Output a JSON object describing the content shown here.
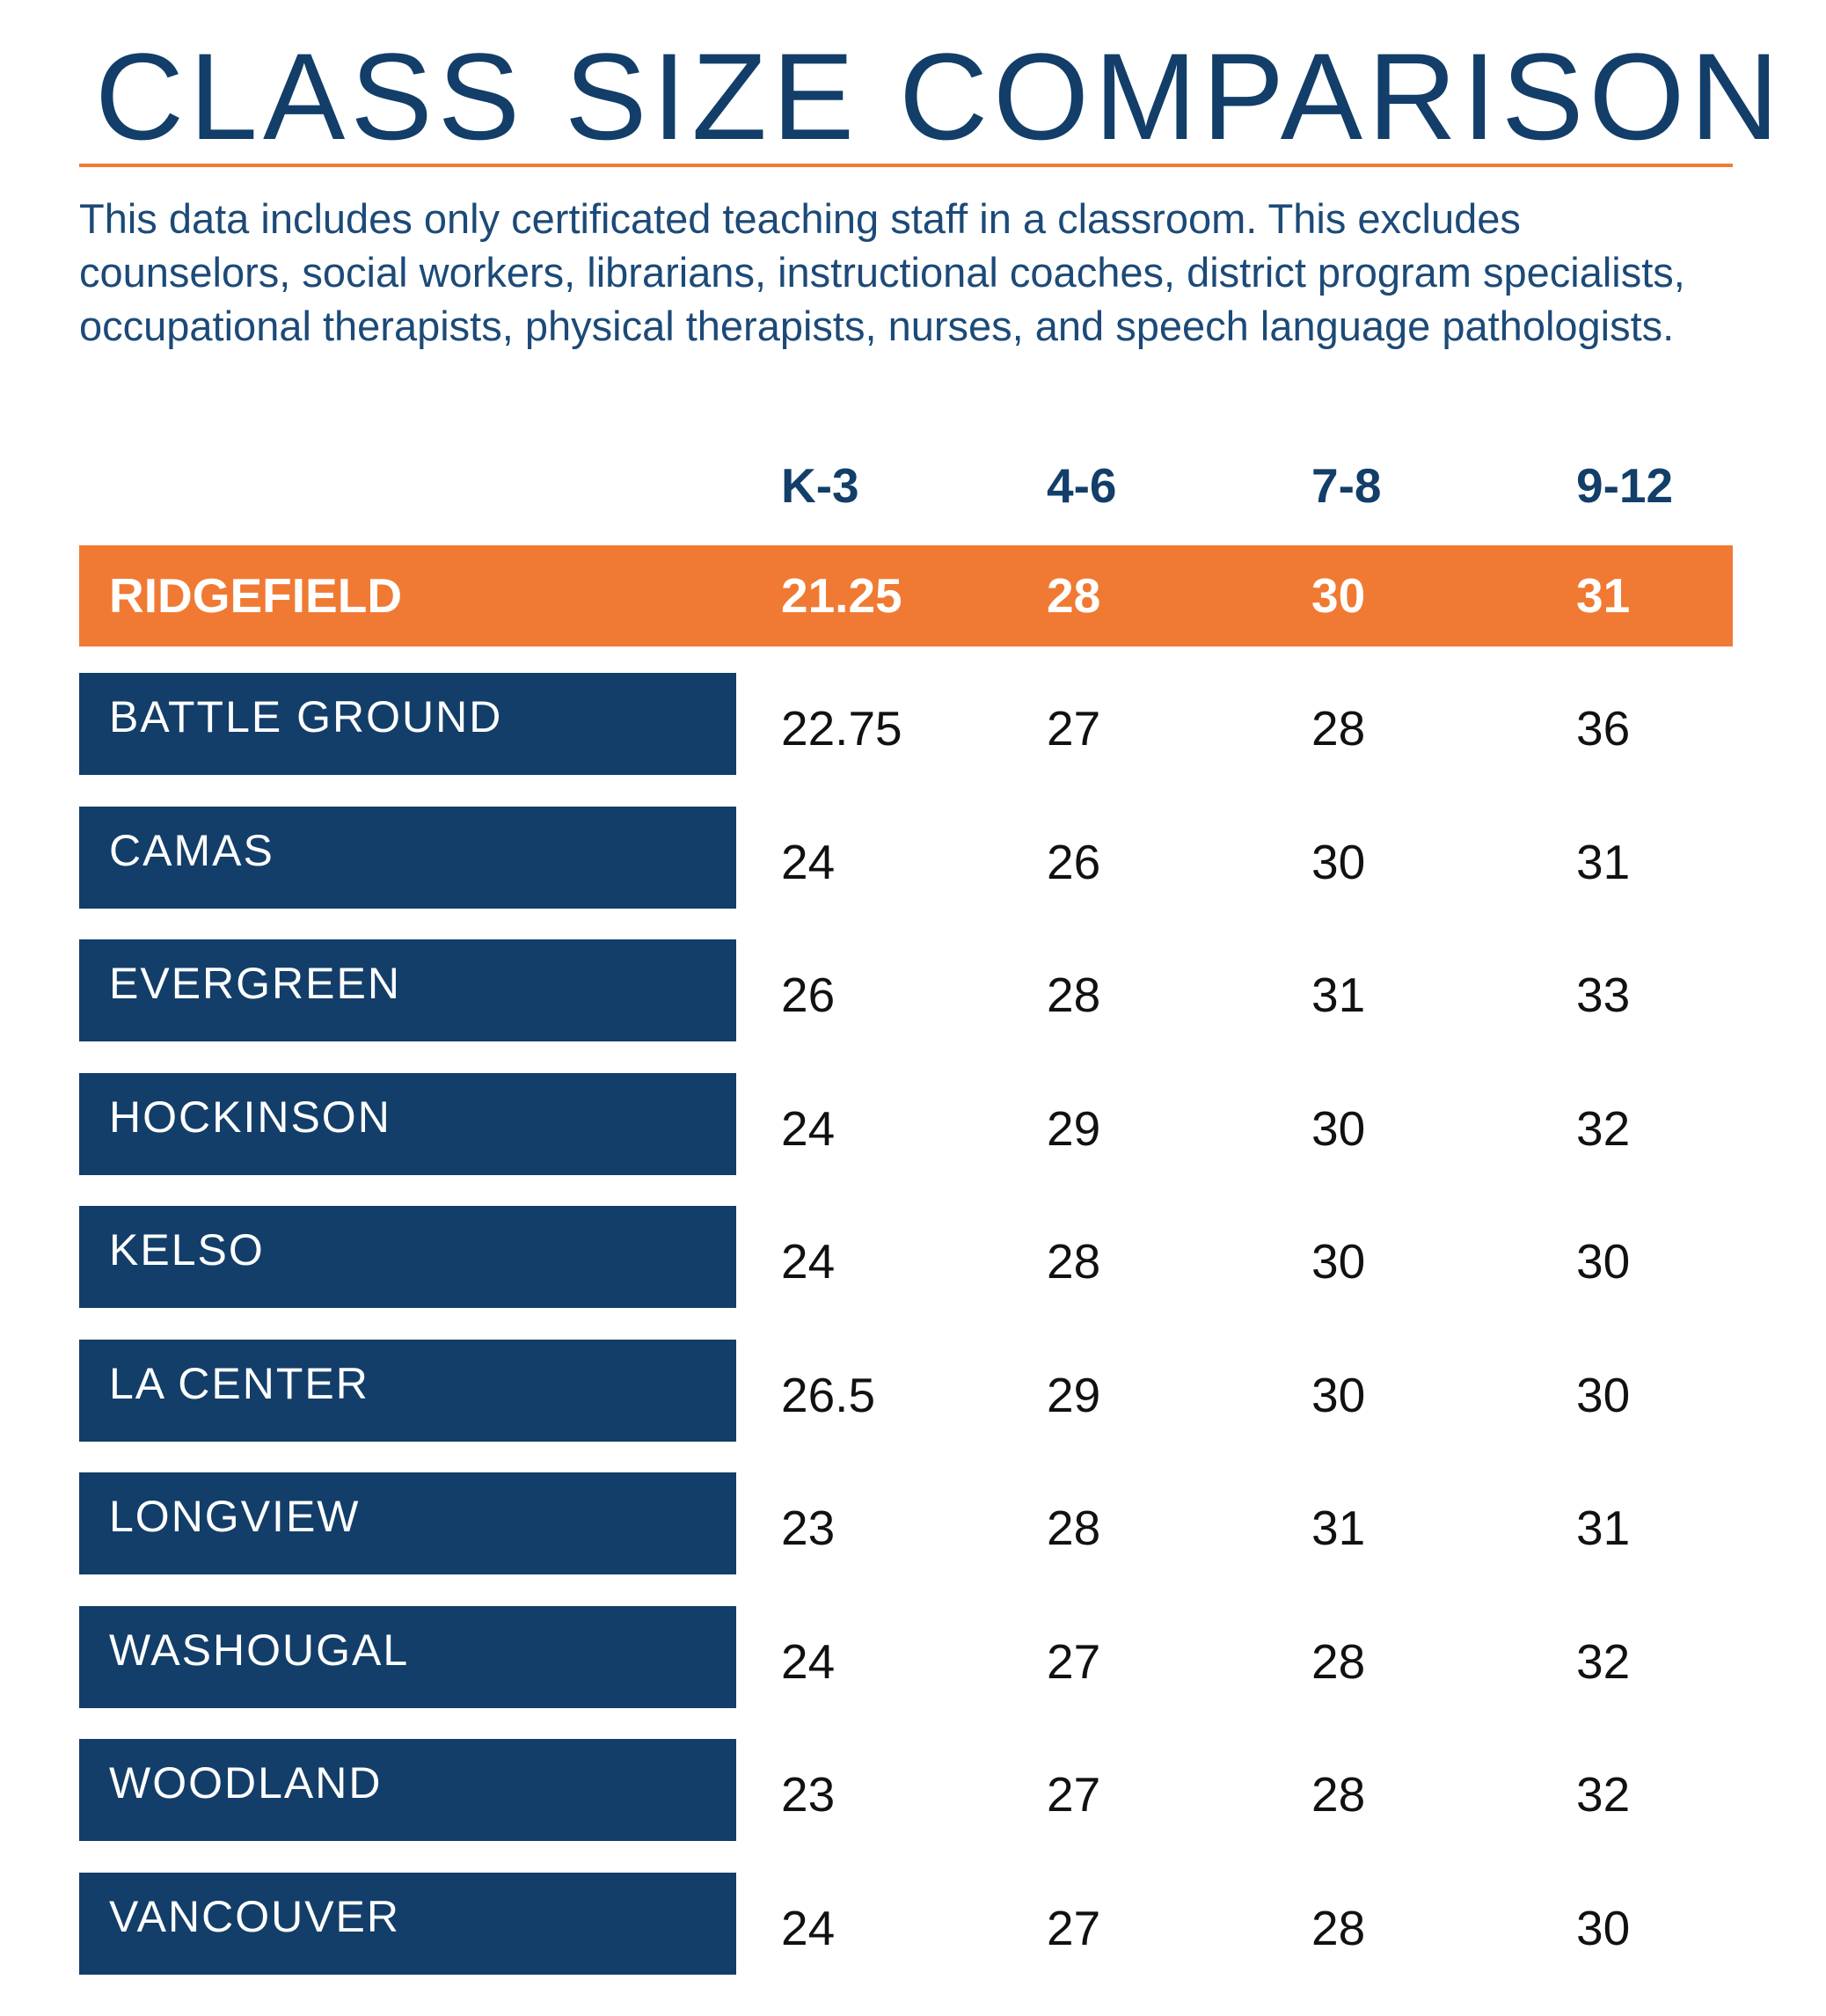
{
  "title": "CLASS SIZE COMPARISON",
  "intro": "This data includes only certificated teaching staff in a classroom. This excludes counselors, social workers, librarians, instructional coaches, district program specialists, occupational therapists, physical therapists, nurses, and speech language pathologists.",
  "colors": {
    "navy": "#123e69",
    "orange": "#f07a33",
    "white": "#ffffff"
  },
  "chart_data": {
    "type": "table",
    "title": "CLASS SIZE COMPARISON",
    "columns": [
      "K-3",
      "4-6",
      "7-8",
      "9-12"
    ],
    "highlight": {
      "name": "RIDGEFIELD",
      "values": [
        "21.25",
        "28",
        "30",
        "31"
      ]
    },
    "rows": [
      {
        "name": "BATTLE GROUND",
        "values": [
          "22.75",
          "27",
          "28",
          "36"
        ]
      },
      {
        "name": "CAMAS",
        "values": [
          "24",
          "26",
          "30",
          "31"
        ]
      },
      {
        "name": "EVERGREEN",
        "values": [
          "26",
          "28",
          "31",
          "33"
        ]
      },
      {
        "name": "HOCKINSON",
        "values": [
          "24",
          "29",
          "30",
          "32"
        ]
      },
      {
        "name": "KELSO",
        "values": [
          "24",
          "28",
          "30",
          "30"
        ]
      },
      {
        "name": "LA CENTER",
        "values": [
          "26.5",
          "29",
          "30",
          "30"
        ]
      },
      {
        "name": "LONGVIEW",
        "values": [
          "23",
          "28",
          "31",
          "31"
        ]
      },
      {
        "name": "WASHOUGAL",
        "values": [
          "24",
          "27",
          "28",
          "32"
        ]
      },
      {
        "name": "WOODLAND",
        "values": [
          "23",
          "27",
          "28",
          "32"
        ]
      },
      {
        "name": "VANCOUVER",
        "values": [
          "24",
          "27",
          "28",
          "30"
        ]
      }
    ]
  }
}
